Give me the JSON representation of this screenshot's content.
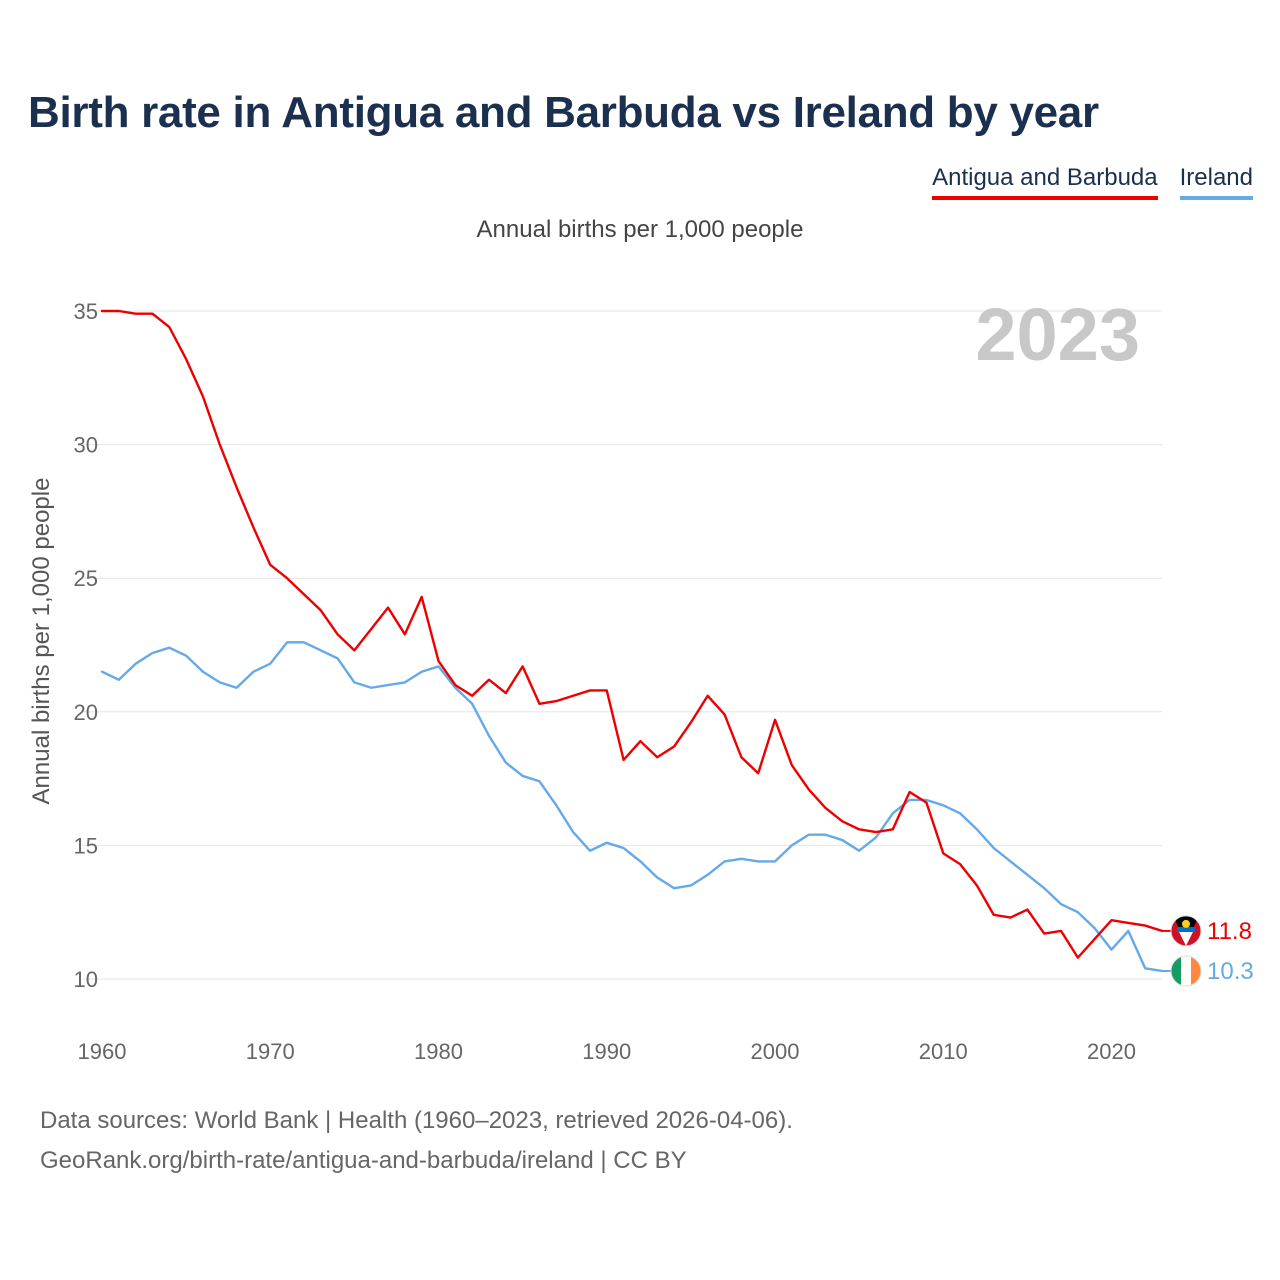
{
  "title": "Birth rate in Antigua and Barbuda vs Ireland by year",
  "legend": {
    "antigua": "Antigua and Barbuda",
    "ireland": "Ireland"
  },
  "colors": {
    "antigua": "#ee0000",
    "ireland": "#65a9e8",
    "title": "#1b2f4f",
    "grid": "#e6e6e6",
    "year_overlay": "#c8c8c8"
  },
  "footer": {
    "line1": "Data sources: World Bank | Health (1960–2023, retrieved 2026-04-06).",
    "line2": "GeoRank.org/birth-rate/antigua-and-barbuda/ireland | CC BY"
  },
  "chart_data": {
    "type": "line",
    "title": "Birth rate in Antigua and Barbuda vs Ireland by year",
    "subtitle": "Annual births per 1,000 people",
    "xlabel": "",
    "ylabel": "Annual births per 1,000 people",
    "year_overlay": "2023",
    "xlim": [
      1960,
      2023
    ],
    "ylim": [
      10,
      35
    ],
    "x_ticks": [
      1960,
      1970,
      1980,
      1990,
      2000,
      2010,
      2020
    ],
    "y_ticks": [
      10,
      15,
      20,
      25,
      30,
      35
    ],
    "x": [
      1960,
      1961,
      1962,
      1963,
      1964,
      1965,
      1966,
      1967,
      1968,
      1969,
      1970,
      1971,
      1972,
      1973,
      1974,
      1975,
      1976,
      1977,
      1978,
      1979,
      1980,
      1981,
      1982,
      1983,
      1984,
      1985,
      1986,
      1987,
      1988,
      1989,
      1990,
      1991,
      1992,
      1993,
      1994,
      1995,
      1996,
      1997,
      1998,
      1999,
      2000,
      2001,
      2002,
      2003,
      2004,
      2005,
      2006,
      2007,
      2008,
      2009,
      2010,
      2011,
      2012,
      2013,
      2014,
      2015,
      2016,
      2017,
      2018,
      2019,
      2020,
      2021,
      2022,
      2023
    ],
    "series": [
      {
        "name": "Antigua and Barbuda",
        "color": "#ee0000",
        "end_label": "11.8",
        "values": [
          35.0,
          35.0,
          34.9,
          34.9,
          34.4,
          33.2,
          31.8,
          30.0,
          28.4,
          26.9,
          25.5,
          25.0,
          24.4,
          23.8,
          22.9,
          22.3,
          23.1,
          23.9,
          22.9,
          24.3,
          21.9,
          21.0,
          20.6,
          21.2,
          20.7,
          21.7,
          20.3,
          20.4,
          20.6,
          20.8,
          20.8,
          18.2,
          18.9,
          18.3,
          18.7,
          19.6,
          20.6,
          19.9,
          18.3,
          17.7,
          19.7,
          18.0,
          17.1,
          16.4,
          15.9,
          15.6,
          15.5,
          15.6,
          17.0,
          16.6,
          14.7,
          14.3,
          13.5,
          12.4,
          12.3,
          12.6,
          11.7,
          11.8,
          10.8,
          11.5,
          12.2,
          12.1,
          12.0,
          11.8
        ]
      },
      {
        "name": "Ireland",
        "color": "#65a9e8",
        "end_label": "10.3",
        "values": [
          21.5,
          21.2,
          21.8,
          22.2,
          22.4,
          22.1,
          21.5,
          21.1,
          20.9,
          21.5,
          21.8,
          22.6,
          22.6,
          22.3,
          22.0,
          21.1,
          20.9,
          21.0,
          21.1,
          21.5,
          21.7,
          20.9,
          20.3,
          19.1,
          18.1,
          17.6,
          17.4,
          16.5,
          15.5,
          14.8,
          15.1,
          14.9,
          14.4,
          13.8,
          13.4,
          13.5,
          13.9,
          14.4,
          14.5,
          14.4,
          14.4,
          15.0,
          15.4,
          15.4,
          15.2,
          14.8,
          15.3,
          16.2,
          16.7,
          16.7,
          16.5,
          16.2,
          15.6,
          14.9,
          14.4,
          13.9,
          13.4,
          12.8,
          12.5,
          11.9,
          11.1,
          11.8,
          10.4,
          10.3
        ]
      }
    ]
  }
}
